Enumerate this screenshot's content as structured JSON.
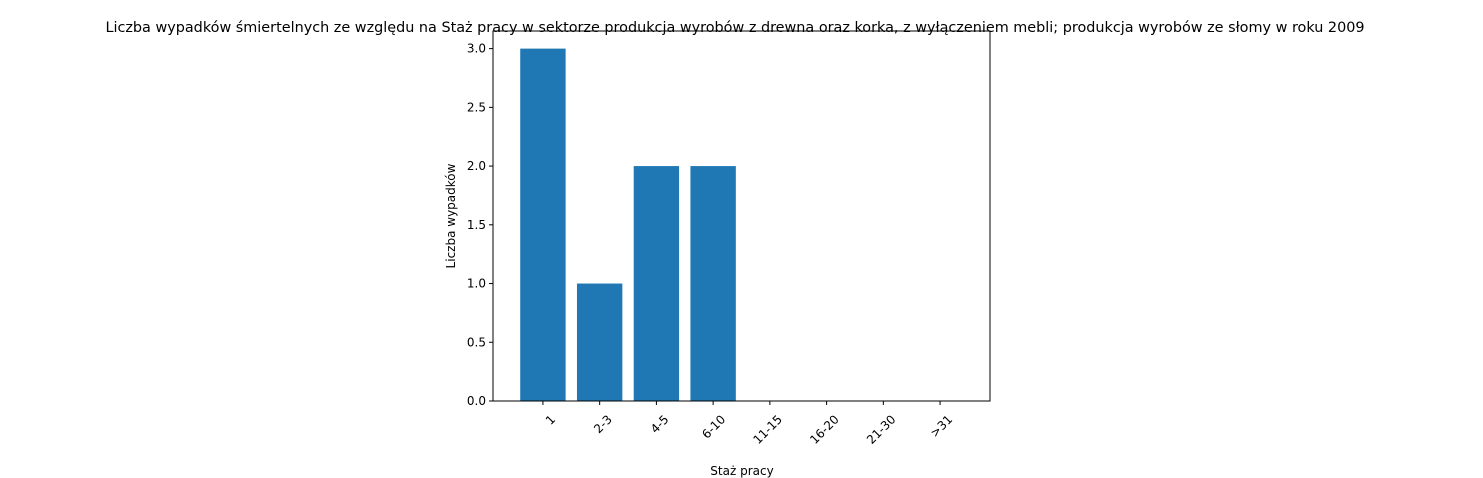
{
  "chart_data": {
    "type": "bar",
    "title": "Liczba wypadków śmiertelnych ze względu na Staż pracy w sektorze produkcja wyrobów z drewna oraz korka, z wyłączeniem mebli; produkcja wyrobów ze słomy w roku 2009",
    "xlabel": "Staż pracy",
    "ylabel": "Liczba wypadków",
    "categories": [
      "1",
      "2-3",
      "4-5",
      "6-10",
      "11-15",
      "16-20",
      "21-30",
      ">31"
    ],
    "values": [
      3,
      1,
      2,
      2,
      0,
      0,
      0,
      0
    ],
    "ylim": [
      0,
      3.15
    ],
    "yticks": [
      0.0,
      0.5,
      1.0,
      1.5,
      2.0,
      2.5,
      3.0
    ],
    "ytick_labels": [
      "0.0",
      "0.5",
      "1.0",
      "1.5",
      "2.0",
      "2.5",
      "3.0"
    ],
    "xtick_rotation": 45,
    "bar_color": "#1f77b4",
    "grid": false,
    "legend": "none"
  }
}
